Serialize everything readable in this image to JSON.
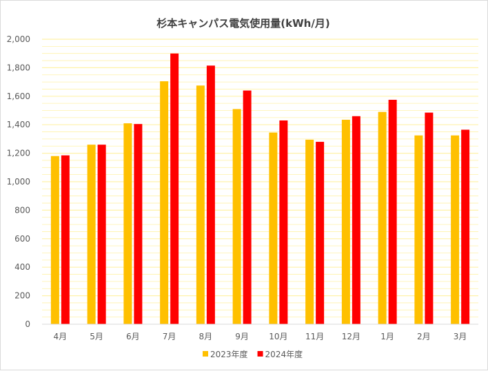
{
  "chart_data": {
    "type": "bar",
    "title": "杉本キャンパス電気使用量(kWh/月)",
    "categories": [
      "4月",
      "5月",
      "6月",
      "7月",
      "8月",
      "9月",
      "10月",
      "11月",
      "12月",
      "1月",
      "2月",
      "3月"
    ],
    "series": [
      {
        "name": "2023年度",
        "color": "#ffc000",
        "values": [
          1180,
          1260,
          1410,
          1705,
          1675,
          1510,
          1345,
          1295,
          1435,
          1490,
          1325,
          1325
        ]
      },
      {
        "name": "2024年度",
        "color": "#ff0000",
        "values": [
          1185,
          1260,
          1405,
          1900,
          1815,
          1640,
          1430,
          1280,
          1460,
          1575,
          1485,
          1365
        ]
      }
    ],
    "ylim": [
      0,
      2000
    ],
    "yticks": [
      "0",
      "200",
      "400",
      "600",
      "800",
      "1,000",
      "1,200",
      "1,400",
      "1,600",
      "1,800",
      "2,000"
    ],
    "grid": true,
    "grid_color": "#fff2a8",
    "legend_position": "bottom"
  }
}
